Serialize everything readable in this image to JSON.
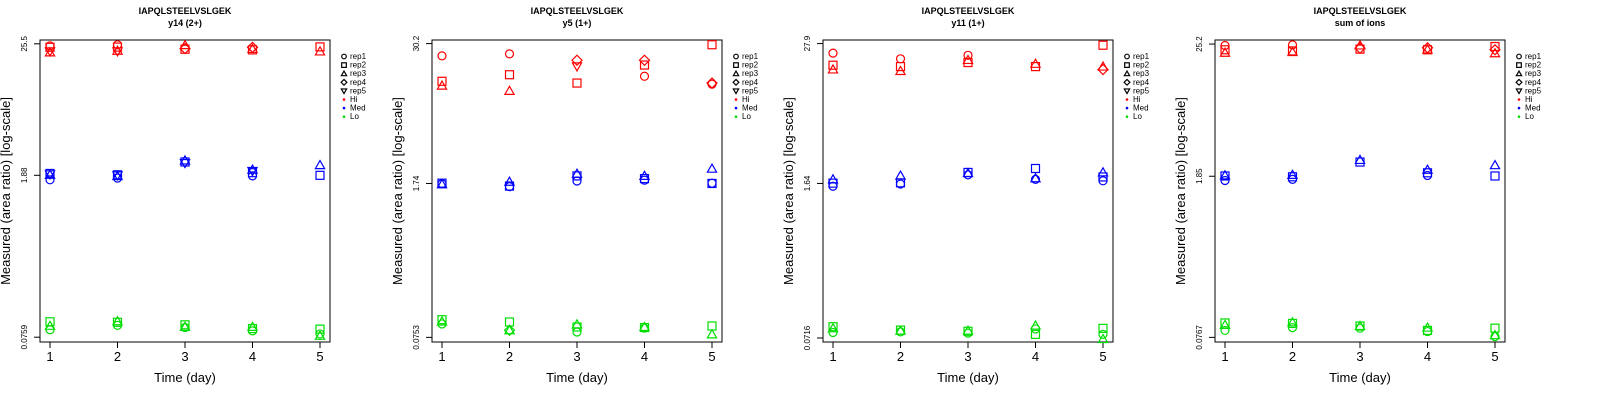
{
  "chart_data": [
    {
      "type": "scatter",
      "title": "IAPQLSTEELVSLGEK",
      "subtitle": "y14 (2+)",
      "xlabel": "Time (day)",
      "ylabel": "Measured (area ratio) [log-scale]",
      "x_ticks": [
        "1",
        "2",
        "3",
        "4",
        "5"
      ],
      "y_ticks": [
        "0.0759",
        "1.88",
        "25.5"
      ],
      "y_tick_values": [
        0.0759,
        1.88,
        25.5
      ],
      "ylim": [
        0.069,
        27.5
      ],
      "groups": [
        {
          "name": "Hi",
          "color": "#ff0000",
          "points": {
            "rep1": [
              24.5,
              25.0,
              null,
              null,
              null
            ],
            "rep2": [
              23.8,
              23.9,
              22.9,
              22.6,
              24.0
            ],
            "rep3": [
              21.5,
              22.2,
              24.8,
              23.0,
              21.9
            ],
            "rep4": [
              null,
              null,
              23.2,
              23.8,
              null
            ],
            "rep5": [
              22.0,
              22.0,
              null,
              null,
              null
            ]
          }
        },
        {
          "name": "Med",
          "color": "#0000ff",
          "points": {
            "rep1": [
              1.72,
              1.78,
              null,
              1.86,
              null
            ],
            "rep2": [
              1.95,
              1.9,
              2.45,
              1.98,
              1.88
            ],
            "rep3": [
              1.9,
              1.85,
              2.52,
              2.1,
              2.3
            ],
            "rep4": [
              null,
              null,
              null,
              null,
              null
            ],
            "rep5": [
              1.92,
              1.88,
              2.4,
              2.05,
              null
            ]
          }
        },
        {
          "name": "Lo",
          "color": "#00dd00",
          "points": {
            "rep1": [
              0.088,
              0.096,
              0.092,
              0.086,
              0.081
            ],
            "rep2": [
              0.103,
              0.102,
              0.097,
              0.09,
              0.089
            ],
            "rep3": [
              0.095,
              0.104,
              0.093,
              0.093,
              0.078
            ],
            "rep4": [
              null,
              null,
              null,
              null,
              null
            ],
            "rep5": [
              null,
              null,
              null,
              null,
              null
            ]
          }
        }
      ]
    },
    {
      "type": "scatter",
      "title": "IAPQLSTEELVSLGEK",
      "subtitle": "y5 (1+)",
      "xlabel": "Time (day)",
      "ylabel": "Measured (area ratio) [log-scale]",
      "x_ticks": [
        "1",
        "2",
        "3",
        "4",
        "5"
      ],
      "y_ticks": [
        "0.0753",
        "1.74",
        "30.2"
      ],
      "y_tick_values": [
        0.0753,
        1.74,
        30.2
      ],
      "ylim": [
        0.0685,
        32.5
      ],
      "groups": [
        {
          "name": "Hi",
          "color": "#ff0000",
          "points": {
            "rep1": [
              23.5,
              24.5,
              null,
              15.5,
              13.2
            ],
            "rep2": [
              14.0,
              16.0,
              13.5,
              19.5,
              29.5
            ],
            "rep3": [
              12.8,
              11.5,
              null,
              null,
              null
            ],
            "rep4": [
              null,
              null,
              21.5,
              21.5,
              13.5
            ],
            "rep5": [
              null,
              null,
              19.0,
              null,
              null
            ]
          }
        },
        {
          "name": "Med",
          "color": "#0000ff",
          "points": {
            "rep1": [
              1.73,
              1.63,
              1.83,
              1.86,
              1.75
            ],
            "rep2": [
              1.75,
              1.65,
              2.03,
              1.92,
              1.74
            ],
            "rep3": [
              1.71,
              1.8,
              2.12,
              2.03,
              2.35
            ],
            "rep4": [
              null,
              null,
              null,
              null,
              null
            ],
            "rep5": [
              null,
              null,
              null,
              null,
              null
            ]
          }
        },
        {
          "name": "Lo",
          "color": "#00dd00",
          "points": {
            "rep1": [
              0.099,
              null,
              0.084,
              0.091,
              null
            ],
            "rep2": [
              0.108,
              0.103,
              0.093,
              0.092,
              0.095
            ],
            "rep3": [
              0.104,
              0.087,
              0.098,
              0.093,
              0.08
            ],
            "rep4": [
              null,
              0.087,
              null,
              null,
              null
            ],
            "rep5": [
              null,
              null,
              null,
              null,
              null
            ]
          }
        }
      ]
    },
    {
      "type": "scatter",
      "title": "IAPQLSTEELVSLGEK",
      "subtitle": "y11 (1+)",
      "xlabel": "Time (day)",
      "ylabel": "Measured (area ratio) [log-scale]",
      "x_ticks": [
        "1",
        "2",
        "3",
        "4",
        "5"
      ],
      "y_ticks": [
        "0.0716",
        "1.64",
        "27.9"
      ],
      "y_tick_values": [
        0.0716,
        1.64,
        27.9
      ],
      "ylim": [
        0.066,
        30.0
      ],
      "groups": [
        {
          "name": "Hi",
          "color": "#ff0000",
          "points": {
            "rep1": [
              23.0,
              20.5,
              22.0,
              null,
              null
            ],
            "rep2": [
              18.0,
              17.5,
              19.0,
              17.5,
              27.0
            ],
            "rep3": [
              16.5,
              16.0,
              20.0,
              18.5,
              17.5
            ],
            "rep4": [
              null,
              null,
              null,
              null,
              16.5
            ],
            "rep5": [
              null,
              null,
              null,
              null,
              null
            ]
          }
        },
        {
          "name": "Med",
          "color": "#0000ff",
          "points": {
            "rep1": [
              1.55,
              1.62,
              1.95,
              1.78,
              1.73
            ],
            "rep2": [
              1.65,
              1.66,
              2.05,
              2.22,
              1.87
            ],
            "rep3": [
              1.78,
              1.92,
              2.02,
              1.82,
              2.05
            ],
            "rep4": [
              null,
              null,
              null,
              null,
              null
            ],
            "rep5": [
              null,
              null,
              null,
              null,
              null
            ]
          }
        },
        {
          "name": "Lo",
          "color": "#00dd00",
          "points": {
            "rep1": [
              0.08,
              0.081,
              0.079,
              0.086,
              0.077
            ],
            "rep2": [
              0.09,
              0.084,
              0.082,
              0.077,
              0.087
            ],
            "rep3": [
              0.087,
              0.083,
              0.083,
              0.092,
              0.07
            ],
            "rep4": [
              null,
              null,
              null,
              null,
              null
            ],
            "rep5": [
              null,
              null,
              null,
              null,
              null
            ]
          }
        }
      ]
    },
    {
      "type": "scatter",
      "title": "IAPQLSTEELVSLGEK",
      "subtitle": "sum of ions",
      "xlabel": "Time (day)",
      "ylabel": "Measured (area ratio) [log-scale]",
      "x_ticks": [
        "1",
        "2",
        "3",
        "4",
        "5"
      ],
      "y_ticks": [
        "0.0767",
        "1.85",
        "25.2"
      ],
      "y_tick_values": [
        0.0767,
        1.85,
        25.2
      ],
      "ylim": [
        0.07,
        27.3
      ],
      "groups": [
        {
          "name": "Hi",
          "color": "#ff0000",
          "points": {
            "rep1": [
              24.5,
              24.8,
              null,
              null,
              null
            ],
            "rep2": [
              22.5,
              22.0,
              22.8,
              22.5,
              24.0
            ],
            "rep3": [
              21.2,
              21.5,
              24.5,
              22.6,
              21.0
            ],
            "rep4": [
              null,
              null,
              23.2,
              23.4,
              22.5
            ],
            "rep5": [
              null,
              null,
              null,
              null,
              null
            ]
          }
        },
        {
          "name": "Med",
          "color": "#0000ff",
          "points": {
            "rep1": [
              1.7,
              1.74,
              null,
              1.88,
              null
            ],
            "rep2": [
              1.86,
              1.83,
              2.45,
              1.98,
              1.86
            ],
            "rep3": [
              1.88,
              1.9,
              2.55,
              2.1,
              2.3
            ],
            "rep4": [
              null,
              null,
              null,
              null,
              null
            ],
            "rep5": [
              null,
              null,
              null,
              null,
              null
            ]
          }
        },
        {
          "name": "Lo",
          "color": "#00dd00",
          "points": {
            "rep1": [
              0.088,
              0.093,
              0.092,
              0.086,
              0.078
            ],
            "rep2": [
              0.102,
              0.101,
              0.096,
              0.088,
              0.092
            ],
            "rep3": [
              0.098,
              0.103,
              0.096,
              0.093,
              0.08
            ],
            "rep4": [
              null,
              null,
              null,
              null,
              null
            ],
            "rep5": [
              null,
              null,
              null,
              null,
              null
            ]
          }
        }
      ]
    }
  ],
  "legend": {
    "entries": [
      "rep1",
      "rep2",
      "rep3",
      "rep4",
      "rep5",
      "Hi",
      "Med",
      "Lo"
    ],
    "placement": "right"
  }
}
